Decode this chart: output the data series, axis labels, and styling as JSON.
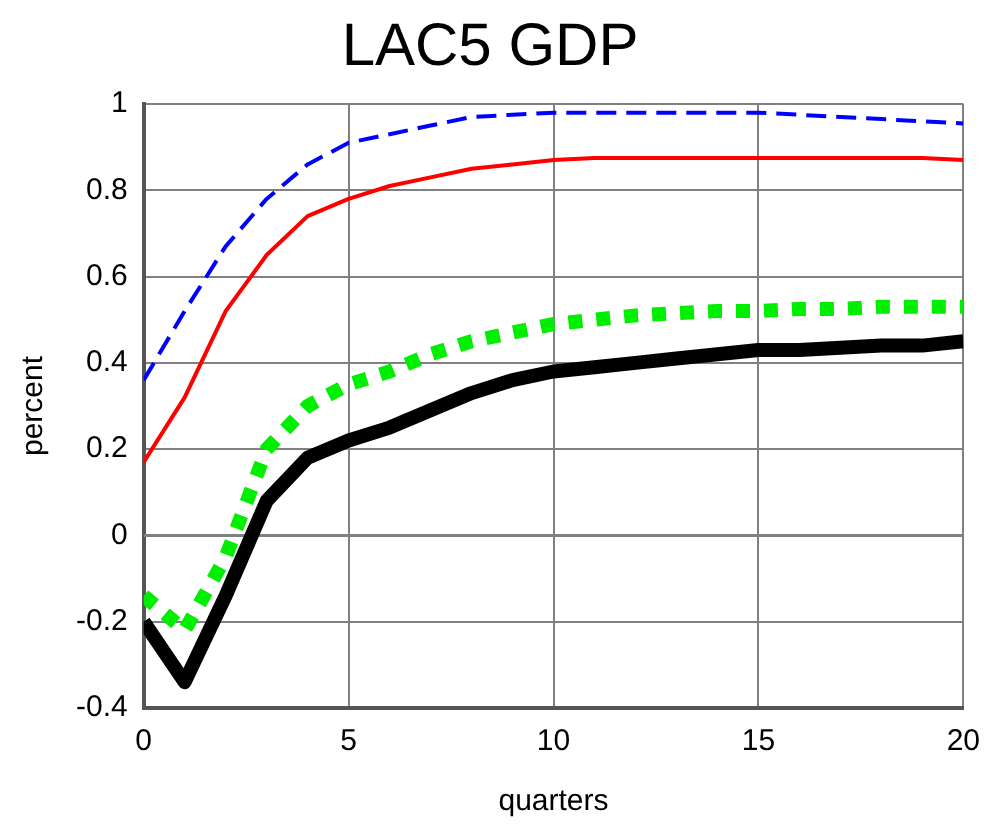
{
  "chart_data": {
    "type": "line",
    "title": "LAC5 GDP",
    "xlabel": "quarters",
    "ylabel": "percent",
    "x": [
      0,
      1,
      2,
      3,
      4,
      5,
      6,
      7,
      8,
      9,
      10,
      11,
      12,
      13,
      14,
      15,
      16,
      17,
      18,
      19,
      20
    ],
    "xlim": [
      0,
      20
    ],
    "xticks": [
      0,
      5,
      10,
      15,
      20
    ],
    "ylim": [
      -0.4,
      1
    ],
    "yticks": [
      -0.4,
      -0.2,
      0,
      0.2,
      0.4,
      0.6,
      0.8,
      1
    ],
    "grid": true,
    "legend": false,
    "marker": "none",
    "ref_lines": [
      {
        "axis": "y",
        "value": 0,
        "color": "#808080"
      }
    ],
    "series": [
      {
        "color": "#0000ff",
        "line_style": "dashed",
        "values": [
          0.36,
          0.52,
          0.67,
          0.78,
          0.86,
          0.91,
          0.93,
          0.95,
          0.97,
          0.975,
          0.98,
          0.98,
          0.98,
          0.98,
          0.98,
          0.98,
          0.975,
          0.97,
          0.965,
          0.96,
          0.955
        ]
      },
      {
        "color": "#ff0000",
        "line_style": "solid",
        "values": [
          0.17,
          0.32,
          0.52,
          0.65,
          0.74,
          0.78,
          0.81,
          0.83,
          0.85,
          0.86,
          0.87,
          0.875,
          0.875,
          0.875,
          0.875,
          0.875,
          0.875,
          0.875,
          0.875,
          0.875,
          0.87
        ]
      },
      {
        "color": "#00ee00",
        "line_style": "dotted",
        "values": [
          -0.14,
          -0.22,
          -0.05,
          0.2,
          0.3,
          0.35,
          0.38,
          0.42,
          0.45,
          0.47,
          0.49,
          0.5,
          0.51,
          0.515,
          0.52,
          0.52,
          0.525,
          0.525,
          0.53,
          0.53,
          0.53
        ]
      },
      {
        "color": "#000000",
        "line_style": "solid",
        "values": [
          -0.2,
          -0.34,
          -0.14,
          0.08,
          0.18,
          0.22,
          0.25,
          0.29,
          0.33,
          0.36,
          0.38,
          0.39,
          0.4,
          0.41,
          0.42,
          0.43,
          0.43,
          0.435,
          0.44,
          0.44,
          0.45
        ]
      }
    ]
  }
}
